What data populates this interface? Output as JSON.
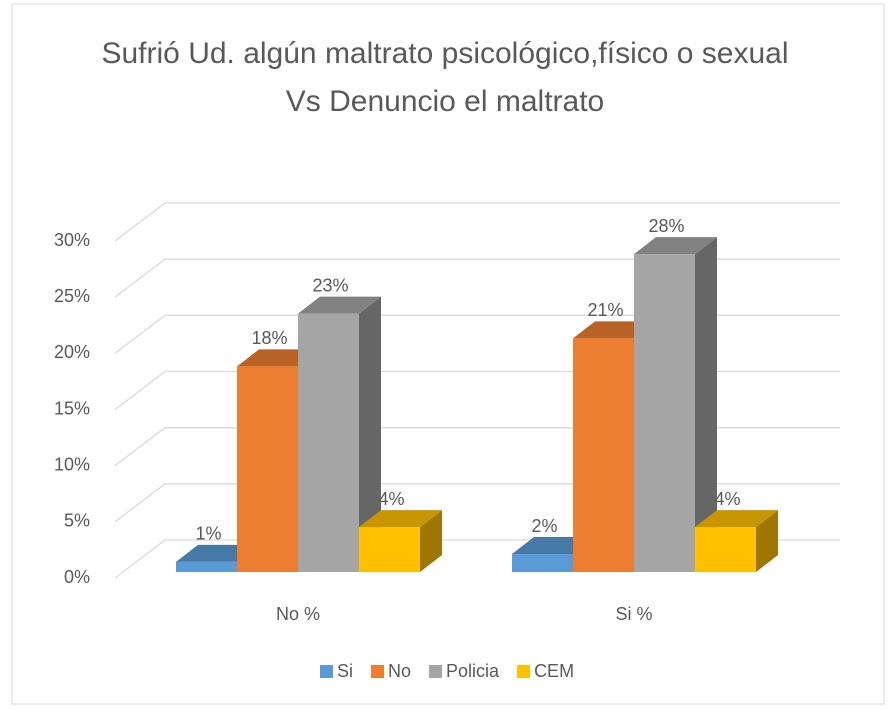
{
  "chart_data": {
    "type": "bar3d",
    "title": "Sufrió Ud. algún maltrato psicológico,físico o sexual Vs Denuncio el maltrato",
    "categories": [
      "No %",
      "Si %"
    ],
    "series": [
      {
        "name": "Si",
        "color": "#5b9bd5",
        "values": [
          0.9,
          1.6
        ],
        "value_labels": [
          "1%",
          "2%"
        ]
      },
      {
        "name": "No",
        "color": "#ed7d31",
        "values": [
          18.3,
          20.8
        ],
        "value_labels": [
          "18%",
          "21%"
        ]
      },
      {
        "name": "Policia",
        "color": "#a5a5a5",
        "values": [
          23.0,
          28.3
        ],
        "value_labels": [
          "23%",
          "28%"
        ]
      },
      {
        "name": "CEM",
        "color": "#ffc000",
        "values": [
          4.0,
          4.0
        ],
        "value_labels": [
          "4%",
          "4%"
        ]
      }
    ],
    "ylim": [
      0,
      30
    ],
    "yticks": [
      {
        "value": 0,
        "label": "0%"
      },
      {
        "value": 5,
        "label": "5%"
      },
      {
        "value": 10,
        "label": "10%"
      },
      {
        "value": 15,
        "label": "15%"
      },
      {
        "value": 20,
        "label": "20%"
      },
      {
        "value": 25,
        "label": "25%"
      },
      {
        "value": 30,
        "label": "30%"
      }
    ],
    "grid": true,
    "legend": "bottom"
  }
}
